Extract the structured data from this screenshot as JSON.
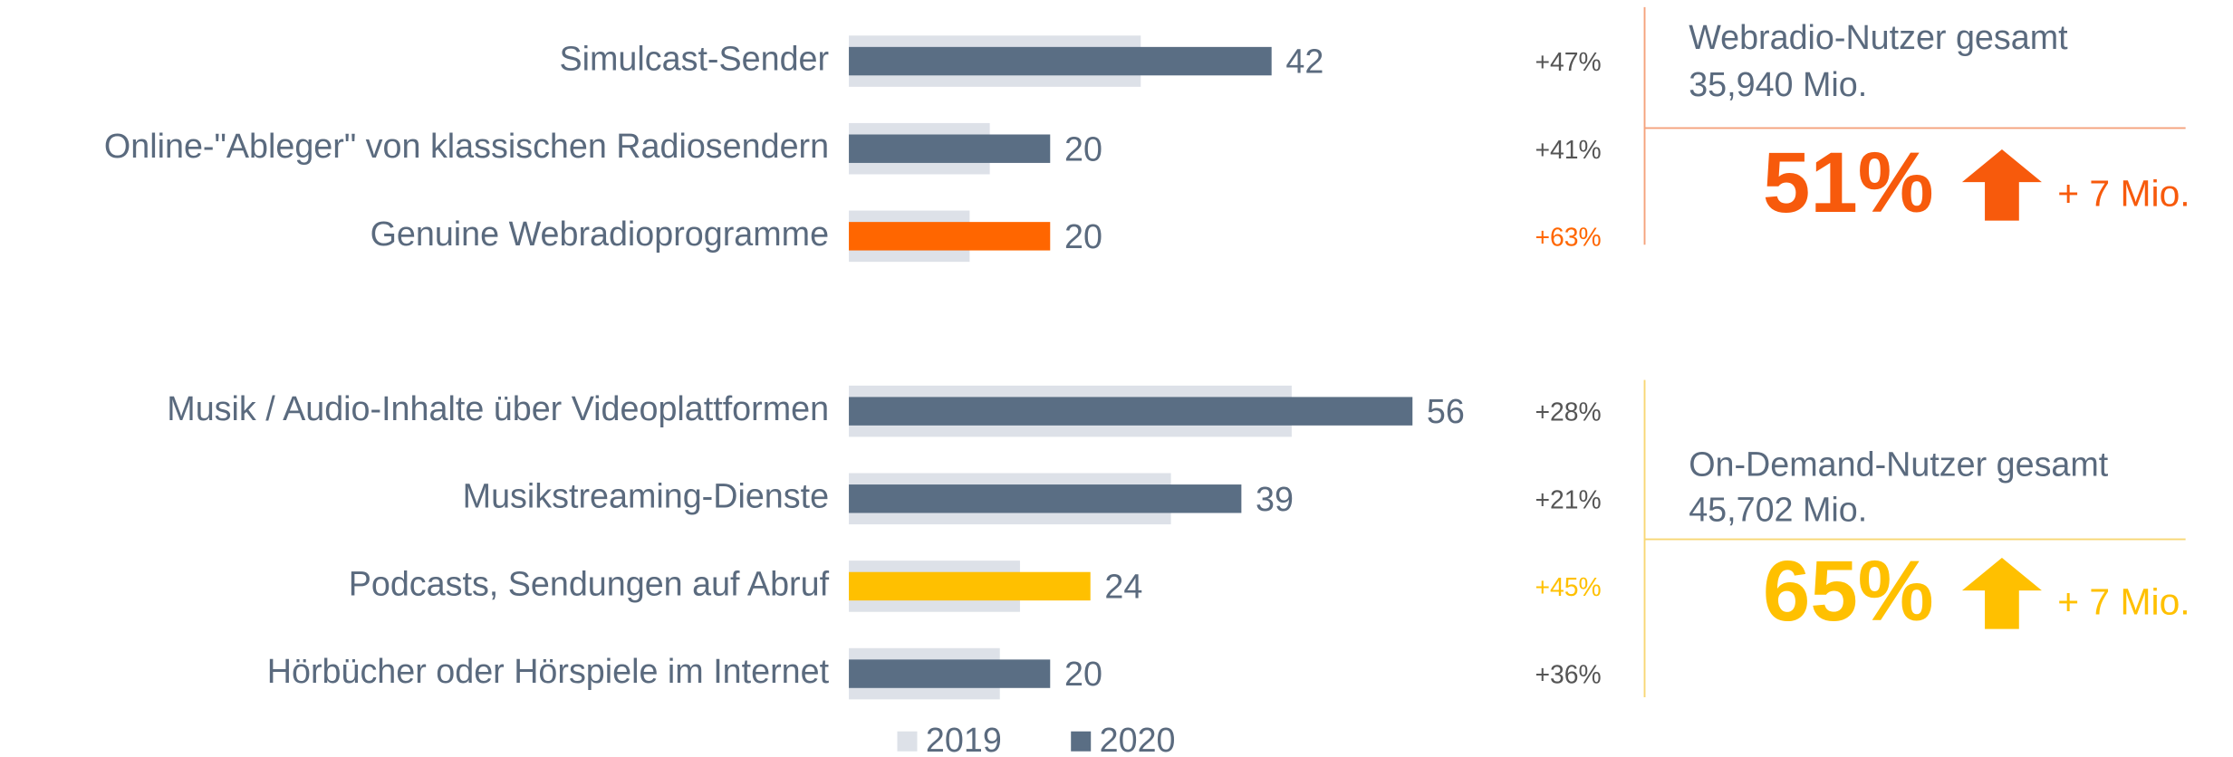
{
  "chart_data": [
    {
      "type": "bar",
      "categories": [
        "Simulcast-Sender",
        "Online-\"Ableger\" von klassischen Radiosendern",
        "Genuine Webradioprogramme"
      ],
      "series": [
        {
          "name": "2019",
          "color": "#dde1e8",
          "values": [
            29,
            14,
            12
          ]
        },
        {
          "name": "2020",
          "color": "#5a6e84",
          "values": [
            42,
            20,
            20
          ],
          "colors": [
            "#5a6e84",
            "#5a6e84",
            "#ff6600"
          ]
        }
      ],
      "changes": [
        "+47%",
        "+41%",
        "+63%"
      ],
      "summary": {
        "title": "Webradio-Nutzer gesamt",
        "total": "35,940 Mio.",
        "share": "51%",
        "increase": "+ 7 Mio.",
        "color": "#f75a0c",
        "line_color": "#f4a27c"
      }
    },
    {
      "type": "bar",
      "categories": [
        "Musik / Audio-Inhalte über Videoplattformen",
        "Musikstreaming-Dienste",
        "Podcasts, Sendungen auf Abruf",
        "Hörbücher oder Hörspiele im Internet"
      ],
      "series": [
        {
          "name": "2019",
          "color": "#dde1e8",
          "values": [
            44,
            32,
            17,
            15
          ]
        },
        {
          "name": "2020",
          "color": "#5a6e84",
          "values": [
            56,
            39,
            24,
            20
          ],
          "colors": [
            "#5a6e84",
            "#5a6e84",
            "#ffc000",
            "#5a6e84"
          ]
        }
      ],
      "changes": [
        "+28%",
        "+21%",
        "+45%",
        "+36%"
      ],
      "summary": {
        "title": "On-Demand-Nutzer gesamt",
        "total": "45,702 Mio.",
        "share": "65%",
        "increase": "+ 7 Mio.",
        "color": "#ffc000",
        "line_color": "#f7d774"
      }
    }
  ]
}
